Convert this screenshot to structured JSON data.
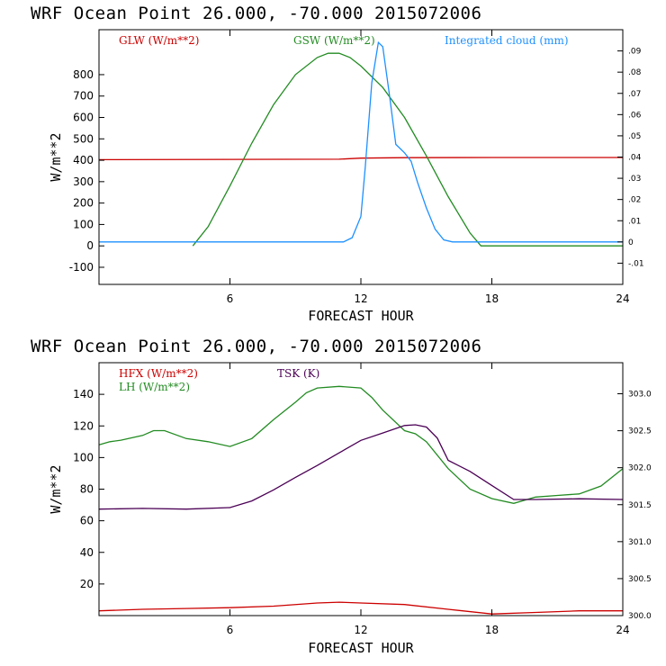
{
  "chart_data": [
    {
      "type": "line",
      "title": "WRF   Ocean Point   26.000, -70.000  2015072006",
      "xlabel": "FORECAST HOUR",
      "ylabel": "W/m**2",
      "xlim": [
        0,
        24
      ],
      "ylim": [
        -180,
        1010
      ],
      "xticks": [
        6,
        12,
        18,
        24
      ],
      "yticks": [
        -100,
        0,
        100,
        200,
        300,
        400,
        500,
        600,
        700,
        800
      ],
      "y2lim": [
        -0.02,
        0.1
      ],
      "y2ticks": [
        -0.01,
        0,
        0.01,
        0.02,
        0.03,
        0.04,
        0.05,
        0.06,
        0.07,
        0.08,
        0.09
      ],
      "y2ticklabels": [
        "-.01",
        "0",
        ".01",
        ".02",
        ".03",
        ".04",
        ".05",
        ".06",
        ".07",
        ".08",
        ".09"
      ],
      "series": [
        {
          "name": "GLW (W/m**2)",
          "color": "#cc0000",
          "axis": "left",
          "x": [
            0,
            6,
            11,
            12,
            14,
            18,
            24
          ],
          "y": [
            403,
            404,
            405,
            410,
            412,
            413,
            413
          ]
        },
        {
          "name": "GSW (W/m**2)",
          "color": "#228b22",
          "axis": "left",
          "x": [
            4.3,
            5,
            6,
            7,
            8,
            9,
            10,
            10.5,
            11,
            11.5,
            12,
            13,
            14,
            15,
            16,
            17,
            17.5,
            24
          ],
          "y": [
            0,
            90,
            280,
            480,
            660,
            800,
            880,
            900,
            900,
            880,
            840,
            740,
            600,
            420,
            230,
            60,
            0,
            0
          ]
        },
        {
          "name": "Integrated cloud (mm)",
          "color": "#1e90ff",
          "axis": "right",
          "x": [
            0,
            11.2,
            11.6,
            12,
            12.2,
            12.5,
            12.8,
            13,
            13.3,
            13.6,
            14,
            14.3,
            14.6,
            15,
            15.4,
            15.8,
            16.2,
            24
          ],
          "y": [
            0,
            0,
            0.002,
            0.012,
            0.035,
            0.075,
            0.094,
            0.092,
            0.07,
            0.046,
            0.042,
            0.038,
            0.028,
            0.016,
            0.006,
            0.001,
            0,
            0
          ]
        }
      ]
    },
    {
      "type": "line",
      "title": "WRF   Ocean Point   26.000, -70.000  2015072006",
      "xlabel": "FORECAST HOUR",
      "ylabel": "W/m**2",
      "xlim": [
        0,
        24
      ],
      "ylim": [
        0,
        160
      ],
      "xticks": [
        6,
        12,
        18,
        24
      ],
      "yticks": [
        20,
        40,
        60,
        80,
        100,
        120,
        140
      ],
      "y2lim": [
        300.0,
        303.42
      ],
      "y2ticks": [
        300.0,
        300.5,
        301.0,
        301.5,
        302.0,
        302.5,
        303.0
      ],
      "y2ticklabels": [
        "300.0",
        "300.5",
        "301.0",
        "301.5",
        "302.0",
        "302.5",
        "303.0"
      ],
      "series": [
        {
          "name": "HFX (W/m**2)",
          "color": "#cc0000",
          "axis": "left",
          "x": [
            0,
            2,
            4,
            6,
            8,
            10,
            11,
            12,
            14,
            16,
            18,
            20,
            22,
            24
          ],
          "y": [
            3,
            4,
            4.5,
            5,
            6,
            8,
            8.5,
            8,
            7,
            4,
            1,
            2,
            3,
            3
          ]
        },
        {
          "name": "LH (W/m**2)",
          "color": "#228b22",
          "axis": "left",
          "x": [
            0,
            0.5,
            1,
            2,
            2.5,
            3,
            4,
            5,
            6,
            7,
            8,
            9,
            9.5,
            10,
            11,
            12,
            12.5,
            13,
            14,
            14.5,
            15,
            16,
            17,
            18,
            19,
            20,
            21,
            22,
            23,
            24
          ],
          "y": [
            108,
            110,
            111,
            114,
            117,
            117,
            112,
            110,
            107,
            112,
            124,
            135,
            141,
            144,
            145,
            144,
            138,
            130,
            117,
            115,
            110,
            93,
            80,
            74,
            71,
            75,
            76,
            77,
            82,
            93
          ]
        },
        {
          "name": "TSK (K)",
          "color": "#4b0055",
          "axis": "right",
          "x": [
            0,
            2,
            4,
            6,
            7,
            8,
            9,
            10,
            11,
            12,
            13,
            14,
            14.5,
            15,
            15.5,
            16,
            17,
            18,
            19,
            20,
            22,
            24
          ],
          "y": [
            301.44,
            301.45,
            301.44,
            301.46,
            301.55,
            301.7,
            301.87,
            302.03,
            302.2,
            302.37,
            302.47,
            302.57,
            302.58,
            302.55,
            302.4,
            302.1,
            301.95,
            301.76,
            301.57,
            301.57,
            301.58,
            301.57
          ]
        }
      ]
    }
  ]
}
